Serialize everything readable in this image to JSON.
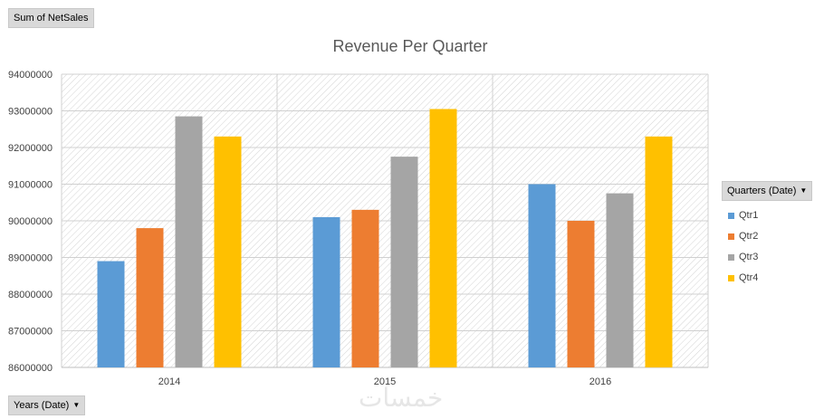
{
  "pivot": {
    "value_field": "Sum of NetSales",
    "row_field": "Years (Date)",
    "column_field": "Quarters (Date)"
  },
  "watermark": "خمسات",
  "chart_data": {
    "type": "bar",
    "title": "Revenue Per Quarter",
    "categories": [
      "2014",
      "2015",
      "2016"
    ],
    "series": [
      {
        "name": "Qtr1",
        "color": "#5b9bd5",
        "values": [
          88900000,
          90100000,
          91000000
        ]
      },
      {
        "name": "Qtr2",
        "color": "#ed7d31",
        "values": [
          89800000,
          90300000,
          90000000
        ]
      },
      {
        "name": "Qtr3",
        "color": "#a5a5a5",
        "values": [
          92850000,
          91750000,
          90750000
        ]
      },
      {
        "name": "Qtr4",
        "color": "#ffc000",
        "values": [
          92300000,
          93050000,
          92300000
        ]
      }
    ],
    "ylim": [
      86000000,
      94000000
    ],
    "yticks": [
      "86000000",
      "87000000",
      "88000000",
      "89000000",
      "90000000",
      "91000000",
      "92000000",
      "93000000",
      "94000000"
    ],
    "grid": true,
    "legend": "right"
  }
}
